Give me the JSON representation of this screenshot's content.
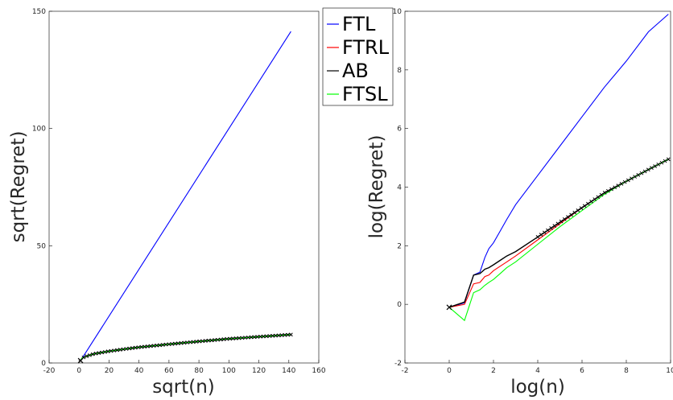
{
  "legend": [
    {
      "label": "FTL",
      "color": "#0000ff"
    },
    {
      "label": "FTRL",
      "color": "#ff0000"
    },
    {
      "label": "AB",
      "color": "#000000"
    },
    {
      "label": "FTSL",
      "color": "#00ff00"
    }
  ],
  "chart_data": [
    {
      "type": "line",
      "xlabel": "sqrt(n)",
      "ylabel": "sqrt(Regret)",
      "xlim": [
        -20,
        160
      ],
      "ylim": [
        0,
        150
      ],
      "xticks": [
        -20,
        0,
        20,
        40,
        60,
        80,
        100,
        120,
        140,
        160
      ],
      "yticks": [
        0,
        50,
        100,
        150
      ],
      "grid": false,
      "series": [
        {
          "name": "FTL",
          "color": "#0000ff",
          "x": [
            1,
            141.4
          ],
          "y": [
            1,
            141.4
          ]
        },
        {
          "name": "FTRL",
          "color": "#ff0000",
          "x": [
            1,
            2,
            5,
            10,
            20,
            30,
            40,
            60,
            80,
            100,
            120,
            141.4
          ],
          "y": [
            1.0,
            2.1,
            2.9,
            3.9,
            5.0,
            5.9,
            6.7,
            8.0,
            9.2,
            10.3,
            11.2,
            12.1
          ]
        },
        {
          "name": "AB",
          "color": "#000000",
          "x": [
            1,
            2,
            5,
            10,
            20,
            30,
            40,
            60,
            80,
            100,
            120,
            141.4
          ],
          "y": [
            1.0,
            2.1,
            2.9,
            3.9,
            5.0,
            5.9,
            6.7,
            8.0,
            9.2,
            10.3,
            11.2,
            12.1
          ]
        },
        {
          "name": "FTSL",
          "color": "#00ff00",
          "x": [
            1,
            2,
            5,
            10,
            20,
            30,
            40,
            60,
            80,
            100,
            120,
            141.4
          ],
          "y": [
            1.0,
            2.1,
            2.9,
            3.9,
            5.0,
            5.9,
            6.7,
            8.0,
            9.2,
            10.3,
            11.2,
            12.1
          ]
        }
      ]
    },
    {
      "type": "line",
      "xlabel": "log(n)",
      "ylabel": "log(Regret)",
      "xlim": [
        -2,
        10
      ],
      "ylim": [
        -2,
        10
      ],
      "xticks": [
        -2,
        0,
        2,
        4,
        6,
        8,
        10
      ],
      "yticks": [
        -2,
        0,
        2,
        4,
        6,
        8,
        10
      ],
      "grid": false,
      "series": [
        {
          "name": "FTL",
          "color": "#0000ff",
          "x": [
            0,
            0.69,
            1.1,
            1.39,
            1.61,
            1.79,
            2.0,
            2.3,
            2.6,
            3.0,
            4.0,
            5.0,
            6.0,
            7.0,
            8.0,
            9.0,
            9.9
          ],
          "y": [
            -0.1,
            0.05,
            1.0,
            1.1,
            1.6,
            1.9,
            2.1,
            2.5,
            2.9,
            3.4,
            4.4,
            5.4,
            6.4,
            7.4,
            8.3,
            9.3,
            9.9
          ]
        },
        {
          "name": "FTRL",
          "color": "#ff0000",
          "x": [
            0,
            0.69,
            1.1,
            1.39,
            1.61,
            1.79,
            2.0,
            2.3,
            2.6,
            3.0,
            4.0,
            5.0,
            6.0,
            7.0,
            8.0,
            9.0,
            9.9
          ],
          "y": [
            -0.1,
            0.0,
            0.7,
            0.75,
            0.95,
            1.0,
            1.15,
            1.3,
            1.45,
            1.65,
            2.2,
            2.75,
            3.3,
            3.8,
            4.2,
            4.6,
            4.95
          ]
        },
        {
          "name": "AB",
          "color": "#000000",
          "x": [
            0,
            0.69,
            1.1,
            1.39,
            1.61,
            1.79,
            2.0,
            2.3,
            2.6,
            3.0,
            4.0,
            5.0,
            6.0,
            7.0,
            8.0,
            9.0,
            9.9
          ],
          "y": [
            -0.1,
            0.08,
            1.0,
            1.05,
            1.2,
            1.25,
            1.35,
            1.5,
            1.65,
            1.8,
            2.3,
            2.8,
            3.3,
            3.8,
            4.2,
            4.6,
            4.95
          ]
        },
        {
          "name": "FTSL",
          "color": "#00ff00",
          "x": [
            0,
            0.69,
            1.1,
            1.39,
            1.61,
            1.79,
            2.0,
            2.3,
            2.6,
            3.0,
            4.0,
            5.0,
            6.0,
            7.0,
            8.0,
            9.0,
            9.9
          ],
          "y": [
            -0.1,
            -0.55,
            0.4,
            0.5,
            0.65,
            0.75,
            0.85,
            1.05,
            1.25,
            1.45,
            2.05,
            2.65,
            3.2,
            3.75,
            4.2,
            4.6,
            4.95
          ]
        }
      ]
    }
  ]
}
